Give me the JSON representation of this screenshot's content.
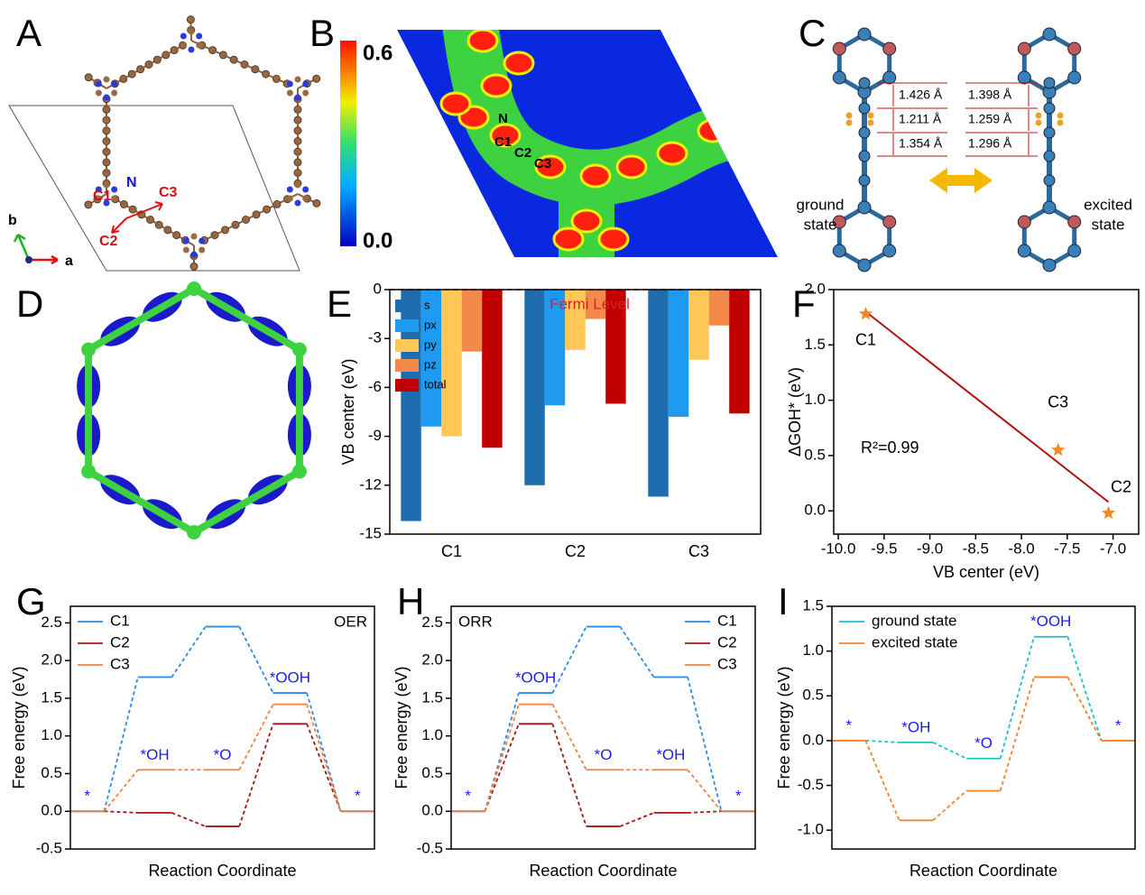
{
  "illustrations": {
    "panel_labels": [
      "A",
      "B",
      "C",
      "D",
      "E",
      "F",
      "G",
      "H",
      "I"
    ],
    "A": {
      "atoms": [
        "C1",
        "N",
        "C2",
        "C3"
      ],
      "axes": [
        "b",
        "a"
      ]
    },
    "B": {
      "colorbar": [
        "0.6",
        "0.0"
      ],
      "atoms": [
        "N",
        "C1",
        "C2",
        "C3"
      ]
    },
    "C": {
      "ground_bonds": [
        "1.426 Å",
        "1.211 Å",
        "1.354 Å"
      ],
      "excited_bonds": [
        "1.398 Å",
        "1.259 Å",
        "1.296 Å"
      ],
      "ground_state": [
        "ground",
        "state"
      ],
      "excited_state": [
        "excited",
        "state"
      ]
    }
  },
  "chart_data": [
    {
      "type": "bar",
      "ylabel": "VB center (eV)",
      "annotation": "Fermi Level",
      "categories": [
        "C1",
        "C2",
        "C3"
      ],
      "series": [
        {
          "name": "s",
          "color": "#1f6cae",
          "values": [
            -14.2,
            -12.0,
            -12.7
          ]
        },
        {
          "name": "px",
          "color": "#1e9bf0",
          "values": [
            -8.4,
            -7.1,
            -7.8
          ]
        },
        {
          "name": "py",
          "color": "#ffc658",
          "values": [
            -9.0,
            -3.7,
            -4.3
          ]
        },
        {
          "name": "pz",
          "color": "#f5894a",
          "values": [
            -3.8,
            -1.8,
            -2.2
          ]
        },
        {
          "name": "total",
          "color": "#c00000",
          "values": [
            -9.7,
            -7.0,
            -7.6
          ]
        }
      ],
      "ylim": [
        -15,
        0
      ],
      "yticks": [
        -15,
        -12,
        -9,
        -6,
        -3,
        0
      ],
      "legend": "upper left"
    },
    {
      "type": "scatter",
      "xlabel": "VB center (eV)",
      "ylabel": "ΔGOH* (eV)",
      "annotation": "R²=0.99",
      "labels": [
        "C1",
        "C2",
        "C3"
      ],
      "x": [
        -9.7,
        -7.05,
        -7.6
      ],
      "y": [
        1.78,
        -0.02,
        0.55
      ],
      "color": "#f5891f",
      "fit": {
        "x": [
          -9.7,
          -7.05
        ],
        "y": [
          1.8,
          0.08
        ],
        "color": "#b01515"
      },
      "xlim": [
        -10.05,
        -6.72
      ],
      "xticks": [
        {
          "value": -10,
          "label": "-10.0"
        },
        -9.5,
        {
          "value": -9,
          "label": "-9.0"
        },
        -8.5,
        {
          "value": -8,
          "label": "-8.0"
        },
        -7.5,
        {
          "value": -7,
          "label": "-7.0"
        }
      ],
      "ylim": [
        -0.21,
        2.0
      ],
      "yticks": [
        {
          "value": 0,
          "label": "0.0"
        },
        0.5,
        {
          "value": 1,
          "label": "1.0"
        },
        1.5,
        {
          "value": 2,
          "label": "2.0"
        }
      ]
    },
    {
      "type": "step",
      "ylabel": "Free energy (eV)",
      "xlabel": "Reaction Coordinate",
      "annotation": "OER",
      "states": [
        "*",
        "*OH",
        "*O",
        "*OOH",
        "*"
      ],
      "series": [
        {
          "name": "C1",
          "color": "#2a8ae8",
          "values": [
            0,
            1.78,
            2.45,
            1.57,
            0
          ]
        },
        {
          "name": "C2",
          "color": "#a01818",
          "values": [
            0,
            -0.02,
            -0.2,
            1.16,
            0
          ]
        },
        {
          "name": "C3",
          "color": "#f5803e",
          "values": [
            0,
            0.55,
            0.55,
            1.42,
            0
          ]
        }
      ],
      "ylim": [
        -0.5,
        2.72
      ],
      "yticks": [
        -0.5,
        {
          "value": 0,
          "label": "0.0"
        },
        0.5,
        {
          "value": 1,
          "label": "1.0"
        },
        1.5,
        {
          "value": 2,
          "label": "2.0"
        },
        2.5
      ],
      "legend": "upper left"
    },
    {
      "type": "step",
      "ylabel": "Free energy (eV)",
      "xlabel": "Reaction Coordinate",
      "annotation": "ORR",
      "states": [
        "*",
        "*OOH",
        "*O",
        "*OH",
        "*"
      ],
      "series": [
        {
          "name": "C1",
          "color": "#2a8ae8",
          "values": [
            0,
            1.57,
            2.45,
            1.78,
            0
          ]
        },
        {
          "name": "C2",
          "color": "#a01818",
          "values": [
            0,
            1.16,
            -0.2,
            -0.02,
            0
          ]
        },
        {
          "name": "C3",
          "color": "#f5803e",
          "values": [
            0,
            1.42,
            0.55,
            0.55,
            0
          ]
        }
      ],
      "ylim": [
        -0.5,
        2.72
      ],
      "yticks": [
        -0.5,
        {
          "value": 0,
          "label": "0.0"
        },
        0.5,
        {
          "value": 1,
          "label": "1.0"
        },
        1.5,
        {
          "value": 2,
          "label": "2.0"
        },
        2.5
      ],
      "legend": "upper right"
    },
    {
      "type": "step",
      "ylabel": "Free energy (eV)",
      "xlabel": "Reaction Coordinate",
      "states": [
        "*",
        "*OH",
        "*O",
        "*OOH",
        "*"
      ],
      "series": [
        {
          "name": "ground state",
          "color": "#1fbfc8",
          "values": [
            0,
            -0.02,
            -0.2,
            1.16,
            0
          ]
        },
        {
          "name": "excited state",
          "color": "#f5802a",
          "values": [
            0,
            -0.89,
            -0.56,
            0.71,
            0
          ]
        }
      ],
      "ylim": [
        -1.21,
        1.5
      ],
      "yticks": [
        {
          "value": -1,
          "label": "-1.0"
        },
        -0.5,
        {
          "value": 0,
          "label": "0.0"
        },
        0.5,
        {
          "value": 1,
          "label": "1.0"
        },
        1.5
      ],
      "legend": "upper left"
    }
  ]
}
